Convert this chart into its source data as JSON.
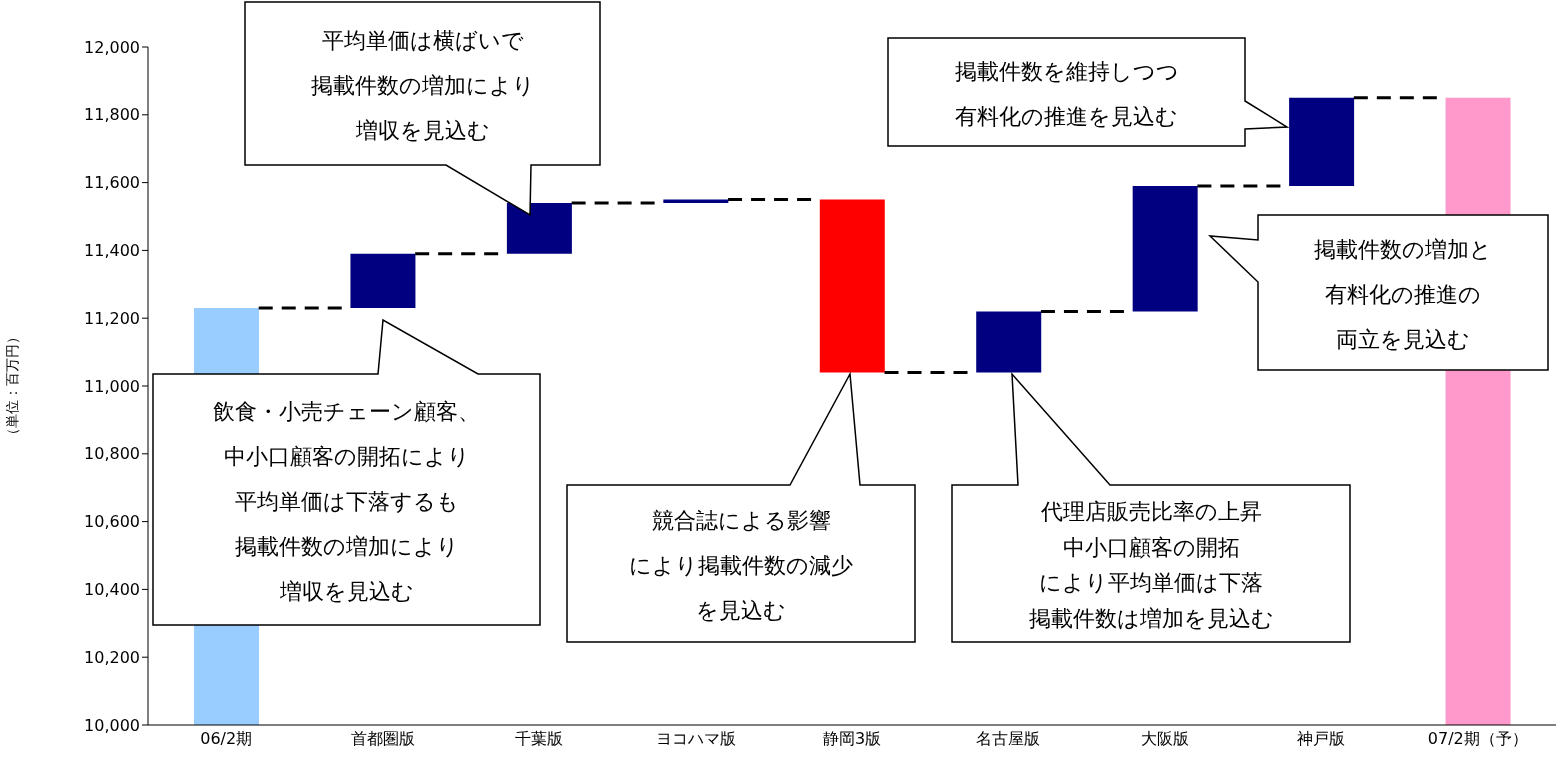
{
  "chart_data": {
    "type": "bar",
    "ylabel": "（単位：百万円）",
    "categories": [
      "06/2期",
      "首都圏版",
      "千葉版",
      "ヨコハマ版",
      "静岡3版",
      "名古屋版",
      "大阪版",
      "神戸版",
      "07/2期（予）"
    ],
    "values": [
      11230,
      160,
      150,
      10,
      -510,
      180,
      370,
      260,
      11850
    ],
    "base": [
      null,
      11230,
      11390,
      11540,
      11550,
      11040,
      11220,
      11590,
      null
    ],
    "colors": [
      "#99ccff",
      "#000080",
      "#000080",
      "#000080",
      "#ff0000",
      "#000080",
      "#000080",
      "#000080",
      "#ff99cc"
    ],
    "ylim": [
      10000,
      12000
    ],
    "yticks": [
      {
        "value": 10000,
        "label": "10,000"
      },
      {
        "value": 10200,
        "label": "10,200"
      },
      {
        "value": 10400,
        "label": "10,400"
      },
      {
        "value": 10600,
        "label": "10,600"
      },
      {
        "value": 10800,
        "label": "10,800"
      },
      {
        "value": 11000,
        "label": "11,000"
      },
      {
        "value": 11200,
        "label": "11,200"
      },
      {
        "value": 11400,
        "label": "11,400"
      },
      {
        "value": 11600,
        "label": "11,600"
      },
      {
        "value": 11800,
        "label": "11,800"
      },
      {
        "value": 12000,
        "label": "12,000"
      }
    ],
    "grid": false,
    "legend": false,
    "annotations": [
      "飲食・小売チェーン顧客、中小口顧客の開拓により平均単価は下落するも掲載件数の増加により増収を見込む",
      "平均単価は横ばいで掲載件数の増加により増収を見込む",
      "競合誌による影響により掲載件数の減少を見込む",
      "代理店販売比率の上昇中小口顧客の開拓により平均単価は下落掲載件数は増加を見込む",
      "掲載件数の増加と有料化の推進の両立を見込む",
      "掲載件数を維持しつつ有料化の推進を見込む"
    ]
  }
}
